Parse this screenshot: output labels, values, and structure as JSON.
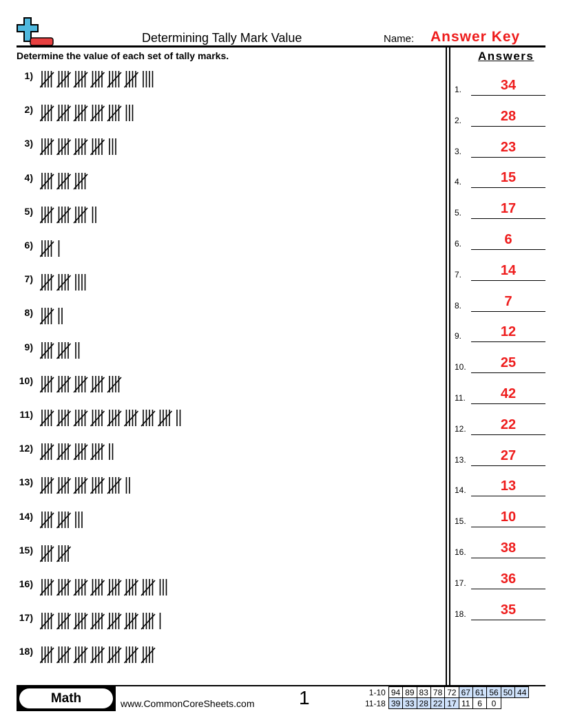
{
  "header": {
    "title": "Determining Tally Mark Value",
    "name_label": "Name:",
    "name_value": "Answer Key"
  },
  "instructions": "Determine the value of each set of tally marks.",
  "answers_heading": "Answers",
  "questions": [
    {
      "label": "1)",
      "value": 34
    },
    {
      "label": "2)",
      "value": 28
    },
    {
      "label": "3)",
      "value": 23
    },
    {
      "label": "4)",
      "value": 15
    },
    {
      "label": "5)",
      "value": 17
    },
    {
      "label": "6)",
      "value": 6
    },
    {
      "label": "7)",
      "value": 14
    },
    {
      "label": "8)",
      "value": 7
    },
    {
      "label": "9)",
      "value": 12
    },
    {
      "label": "10)",
      "value": 25
    },
    {
      "label": "11)",
      "value": 42
    },
    {
      "label": "12)",
      "value": 22
    },
    {
      "label": "13)",
      "value": 27
    },
    {
      "label": "14)",
      "value": 13
    },
    {
      "label": "15)",
      "value": 10
    },
    {
      "label": "16)",
      "value": 38
    },
    {
      "label": "17)",
      "value": 36
    },
    {
      "label": "18)",
      "value": 35
    }
  ],
  "answers": [
    {
      "label": "1.",
      "value": "34"
    },
    {
      "label": "2.",
      "value": "28"
    },
    {
      "label": "3.",
      "value": "23"
    },
    {
      "label": "4.",
      "value": "15"
    },
    {
      "label": "5.",
      "value": "17"
    },
    {
      "label": "6.",
      "value": "6"
    },
    {
      "label": "7.",
      "value": "14"
    },
    {
      "label": "8.",
      "value": "7"
    },
    {
      "label": "9.",
      "value": "12"
    },
    {
      "label": "10.",
      "value": "25"
    },
    {
      "label": "11.",
      "value": "42"
    },
    {
      "label": "12.",
      "value": "22"
    },
    {
      "label": "13.",
      "value": "27"
    },
    {
      "label": "14.",
      "value": "13"
    },
    {
      "label": "15.",
      "value": "10"
    },
    {
      "label": "16.",
      "value": "38"
    },
    {
      "label": "17.",
      "value": "36"
    },
    {
      "label": "18.",
      "value": "35"
    }
  ],
  "footer": {
    "subject": "Math",
    "site": "www.CommonCoreSheets.com",
    "page": "1",
    "score_rows": [
      {
        "label": "1-10",
        "cells": [
          "94",
          "89",
          "83",
          "78",
          "72",
          "67",
          "61",
          "56",
          "50",
          "44"
        ],
        "highlight_from": 5
      },
      {
        "label": "11-18",
        "cells": [
          "39",
          "33",
          "28",
          "22",
          "17",
          "11",
          "6",
          "0"
        ],
        "highlight_until": 5
      }
    ]
  },
  "colors": {
    "answer": "#ee1c1c",
    "score_highlight": "#cfe2fb",
    "logo_plus": "#4fb8de",
    "logo_minus": "#e84040"
  }
}
